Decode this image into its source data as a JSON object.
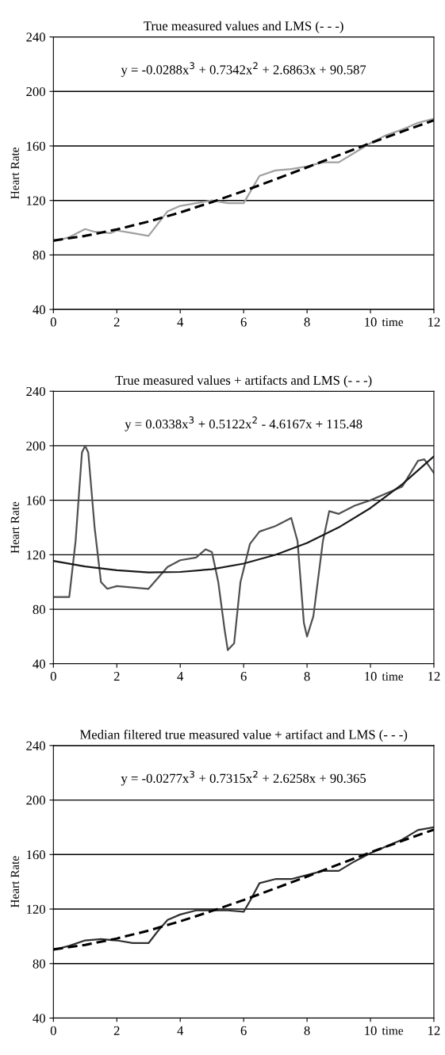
{
  "chart_data": [
    {
      "type": "line",
      "title": "True measured values and LMS (- - -)",
      "xlabel": "time",
      "ylabel": "Heart Rate",
      "xlim": [
        0,
        12
      ],
      "ylim": [
        40,
        240
      ],
      "xticks": [
        0,
        2,
        4,
        6,
        8,
        10,
        12
      ],
      "yticks": [
        40,
        80,
        120,
        160,
        200,
        240
      ],
      "grid": "y",
      "annotations": [
        "y = -0.0288x$^{3}$ + 0.7342x$^{2}$ + 2.6863x + 90.587"
      ],
      "series": [
        {
          "color": "#a0a0a0",
          "line_style": "solid",
          "x": [
            0,
            0.5,
            1.0,
            1.3,
            1.8,
            2.0,
            2.5,
            3.0,
            3.3,
            3.6,
            4.0,
            4.5,
            5.0,
            5.5,
            6.0,
            6.2,
            6.5,
            7.0,
            7.5,
            8.0,
            8.5,
            9.0,
            9.5,
            10.0,
            10.5,
            11.0,
            11.5,
            12
          ],
          "values": [
            90,
            93,
            99,
            97,
            96,
            98,
            96,
            94,
            103,
            112,
            116,
            118,
            120,
            118,
            118,
            126,
            138,
            142,
            143,
            145,
            148,
            148,
            155,
            162,
            168,
            172,
            177,
            180
          ]
        },
        {
          "color": "#000000",
          "line_style": "dashed",
          "x": [
            0,
            1,
            2,
            3,
            4,
            5,
            6,
            7,
            8,
            9,
            10,
            11,
            12
          ],
          "values": [
            90.6,
            94.0,
            98.7,
            104.5,
            111.2,
            118.8,
            126.9,
            135.5,
            144.3,
            153.2,
            162.1,
            170.6,
            178.8
          ]
        }
      ]
    },
    {
      "type": "line",
      "title": "True measured values + artifacts and LMS (- - -)",
      "xlabel": "time",
      "ylabel": "Heart Rate",
      "xlim": [
        0,
        12
      ],
      "ylim": [
        40,
        240
      ],
      "xticks": [
        0,
        2,
        4,
        6,
        8,
        10,
        12
      ],
      "yticks": [
        40,
        80,
        120,
        160,
        200,
        240
      ],
      "grid": "y",
      "annotations": [
        "y = 0.0338x$^{3}$ + 0.5122x$^{2}$ - 4.6167x + 115.48"
      ],
      "series": [
        {
          "color": "#505050",
          "line_style": "solid",
          "x": [
            0,
            0.5,
            0.7,
            0.9,
            1.0,
            1.1,
            1.3,
            1.5,
            1.7,
            2.0,
            2.5,
            3.0,
            3.3,
            3.6,
            4.0,
            4.5,
            4.8,
            5.0,
            5.2,
            5.4,
            5.5,
            5.7,
            5.9,
            6.2,
            6.5,
            7.0,
            7.5,
            7.7,
            7.9,
            8.0,
            8.2,
            8.5,
            8.7,
            9.0,
            9.5,
            10.0,
            10.5,
            11.0,
            11.5,
            11.7,
            12
          ],
          "values": [
            89,
            89,
            130,
            195,
            200,
            195,
            140,
            100,
            95,
            97,
            96,
            95,
            103,
            111,
            116,
            118,
            124,
            122,
            100,
            65,
            50,
            55,
            100,
            128,
            137,
            141,
            147,
            130,
            70,
            60,
            75,
            130,
            152,
            150,
            156,
            160,
            165,
            170,
            189,
            190,
            180
          ]
        },
        {
          "color": "#1a1a1a",
          "line_style": "solid",
          "x": [
            0,
            1,
            2,
            3,
            4,
            5,
            6,
            7,
            8,
            9,
            10,
            11,
            12
          ],
          "values": [
            115.5,
            111.4,
            108.6,
            107.1,
            107.4,
            109.4,
            113.5,
            119.9,
            128.6,
            140.1,
            154.3,
            171.7,
            192.2
          ]
        }
      ]
    },
    {
      "type": "line",
      "title": "Median filtered true measured value + artifact and LMS (- - -)",
      "xlabel": "time",
      "ylabel": "Heart Rate",
      "xlim": [
        0,
        12
      ],
      "ylim": [
        40,
        240
      ],
      "xticks": [
        0,
        2,
        4,
        6,
        8,
        10,
        12
      ],
      "yticks": [
        40,
        80,
        120,
        160,
        200,
        240
      ],
      "grid": "y",
      "annotations": [
        "y = -0.0277x$^{3}$ + 0.7315x$^{2}$ + 2.6258x + 90.365"
      ],
      "series": [
        {
          "color": "#303030",
          "line_style": "solid",
          "x": [
            0,
            0.5,
            1.0,
            1.5,
            2.0,
            2.5,
            3.0,
            3.3,
            3.6,
            4.0,
            4.5,
            5.0,
            5.5,
            6.0,
            6.2,
            6.5,
            7.0,
            7.5,
            8.0,
            8.5,
            9.0,
            9.5,
            10.0,
            10.5,
            11.0,
            11.5,
            12
          ],
          "values": [
            90,
            93,
            97,
            98,
            97,
            95,
            95,
            104,
            112,
            116,
            119,
            119,
            119,
            118,
            126,
            139,
            142,
            142,
            145,
            148,
            148,
            155,
            161,
            166,
            171,
            178,
            180
          ]
        },
        {
          "color": "#000000",
          "line_style": "dashed",
          "x": [
            0,
            1,
            2,
            3,
            4,
            5,
            6,
            7,
            8,
            9,
            10,
            11,
            12
          ],
          "values": [
            90.4,
            93.7,
            98.4,
            104.2,
            111.0,
            118.6,
            126.6,
            135.2,
            143.9,
            152.8,
            161.6,
            170.1,
            178.3
          ]
        }
      ]
    }
  ]
}
